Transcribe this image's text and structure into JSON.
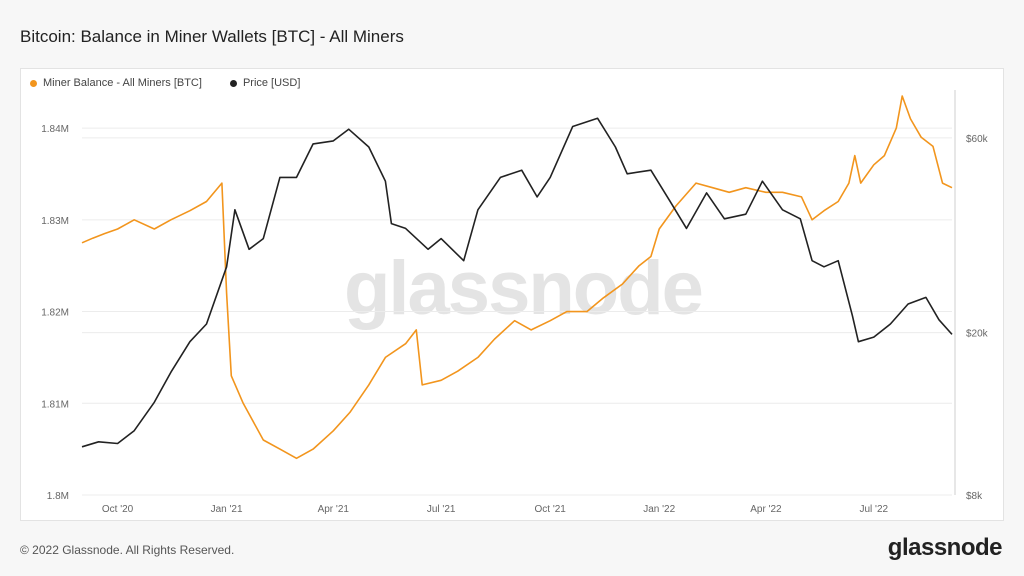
{
  "header": {
    "title": "Bitcoin: Balance in Miner Wallets [BTC] - All Miners"
  },
  "footer": {
    "copyright": "© 2022 Glassnode. All Rights Reserved.",
    "logo": "glassnode"
  },
  "watermark": "glassnode",
  "colors": {
    "balance": "#f2951d",
    "price": "#222222",
    "grid": "#ececec",
    "axis_text": "#666666"
  },
  "chart_data": {
    "type": "line",
    "title": "Bitcoin: Balance in Miner Wallets [BTC] - All Miners",
    "x_tick_labels": [
      "Oct '20",
      "Jan '21",
      "Apr '21",
      "Jul '21",
      "Oct '21",
      "Jan '22",
      "Apr '22",
      "Jul '22"
    ],
    "x_range": [
      "2020-09-01",
      "2022-09-05"
    ],
    "y_left": {
      "ticks": [
        1.8,
        1.81,
        1.82,
        1.83,
        1.84
      ],
      "tick_labels": [
        "1.8M",
        "1.81M",
        "1.82M",
        "1.83M",
        "1.84M"
      ],
      "range_millions": [
        1.8,
        1.8435
      ]
    },
    "y_right": {
      "scale": "log",
      "ticks": [
        8000,
        20000,
        60000
      ],
      "tick_labels": [
        "$8k",
        "$20k",
        "$60k"
      ],
      "range": [
        8000,
        76000
      ]
    },
    "legend_position": "top-left",
    "grid": true,
    "series": [
      {
        "name": "Miner Balance - All Miners [BTC]",
        "axis": "left",
        "unit": "millions BTC",
        "points": [
          [
            "2020-09-01",
            1.8275
          ],
          [
            "2020-09-10",
            1.828
          ],
          [
            "2020-09-20",
            1.8285
          ],
          [
            "2020-10-01",
            1.829
          ],
          [
            "2020-10-15",
            1.83
          ],
          [
            "2020-11-01",
            1.829
          ],
          [
            "2020-11-15",
            1.83
          ],
          [
            "2020-12-01",
            1.831
          ],
          [
            "2020-12-15",
            1.832
          ],
          [
            "2020-12-28",
            1.834
          ],
          [
            "2021-01-01",
            1.822
          ],
          [
            "2021-01-05",
            1.813
          ],
          [
            "2021-01-15",
            1.81
          ],
          [
            "2021-02-01",
            1.806
          ],
          [
            "2021-02-15",
            1.805
          ],
          [
            "2021-03-01",
            1.804
          ],
          [
            "2021-03-15",
            1.805
          ],
          [
            "2021-04-01",
            1.807
          ],
          [
            "2021-04-15",
            1.809
          ],
          [
            "2021-05-01",
            1.812
          ],
          [
            "2021-05-15",
            1.815
          ],
          [
            "2021-06-01",
            1.8165
          ],
          [
            "2021-06-10",
            1.818
          ],
          [
            "2021-06-15",
            1.812
          ],
          [
            "2021-07-01",
            1.8125
          ],
          [
            "2021-07-15",
            1.8135
          ],
          [
            "2021-08-01",
            1.815
          ],
          [
            "2021-08-15",
            1.817
          ],
          [
            "2021-09-01",
            1.819
          ],
          [
            "2021-09-15",
            1.818
          ],
          [
            "2021-10-01",
            1.819
          ],
          [
            "2021-10-15",
            1.82
          ],
          [
            "2021-11-01",
            1.82
          ],
          [
            "2021-11-15",
            1.8215
          ],
          [
            "2021-12-01",
            1.823
          ],
          [
            "2021-12-15",
            1.825
          ],
          [
            "2021-12-25",
            1.826
          ],
          [
            "2022-01-01",
            1.829
          ],
          [
            "2022-01-15",
            1.8315
          ],
          [
            "2022-02-01",
            1.834
          ],
          [
            "2022-02-15",
            1.8335
          ],
          [
            "2022-03-01",
            1.833
          ],
          [
            "2022-03-15",
            1.8335
          ],
          [
            "2022-04-01",
            1.833
          ],
          [
            "2022-04-15",
            1.833
          ],
          [
            "2022-05-01",
            1.8325
          ],
          [
            "2022-05-10",
            1.83
          ],
          [
            "2022-05-20",
            1.831
          ],
          [
            "2022-06-01",
            1.832
          ],
          [
            "2022-06-10",
            1.834
          ],
          [
            "2022-06-15",
            1.837
          ],
          [
            "2022-06-20",
            1.834
          ],
          [
            "2022-07-01",
            1.836
          ],
          [
            "2022-07-10",
            1.837
          ],
          [
            "2022-07-20",
            1.84
          ],
          [
            "2022-07-25",
            1.8435
          ],
          [
            "2022-08-01",
            1.841
          ],
          [
            "2022-08-10",
            1.839
          ],
          [
            "2022-08-20",
            1.838
          ],
          [
            "2022-08-28",
            1.834
          ],
          [
            "2022-09-05",
            1.8335
          ]
        ]
      },
      {
        "name": "Price [USD]",
        "axis": "right",
        "unit": "USD",
        "points": [
          [
            "2020-09-01",
            10500
          ],
          [
            "2020-09-15",
            10800
          ],
          [
            "2020-10-01",
            10700
          ],
          [
            "2020-10-15",
            11500
          ],
          [
            "2020-11-01",
            13500
          ],
          [
            "2020-11-15",
            16000
          ],
          [
            "2020-12-01",
            19000
          ],
          [
            "2020-12-15",
            21000
          ],
          [
            "2021-01-01",
            29000
          ],
          [
            "2021-01-08",
            40000
          ],
          [
            "2021-01-20",
            32000
          ],
          [
            "2021-02-01",
            34000
          ],
          [
            "2021-02-15",
            48000
          ],
          [
            "2021-03-01",
            48000
          ],
          [
            "2021-03-15",
            58000
          ],
          [
            "2021-04-01",
            59000
          ],
          [
            "2021-04-14",
            63000
          ],
          [
            "2021-05-01",
            57000
          ],
          [
            "2021-05-15",
            47000
          ],
          [
            "2021-05-20",
            37000
          ],
          [
            "2021-06-01",
            36000
          ],
          [
            "2021-06-20",
            32000
          ],
          [
            "2021-07-01",
            34000
          ],
          [
            "2021-07-20",
            30000
          ],
          [
            "2021-08-01",
            40000
          ],
          [
            "2021-08-20",
            48000
          ],
          [
            "2021-09-07",
            50000
          ],
          [
            "2021-09-20",
            43000
          ],
          [
            "2021-10-01",
            48000
          ],
          [
            "2021-10-20",
            64000
          ],
          [
            "2021-11-10",
            67000
          ],
          [
            "2021-11-25",
            57000
          ],
          [
            "2021-12-05",
            49000
          ],
          [
            "2021-12-25",
            50000
          ],
          [
            "2022-01-10",
            42000
          ],
          [
            "2022-01-24",
            36000
          ],
          [
            "2022-02-10",
            44000
          ],
          [
            "2022-02-25",
            38000
          ],
          [
            "2022-03-15",
            39000
          ],
          [
            "2022-03-29",
            47000
          ],
          [
            "2022-04-15",
            40000
          ],
          [
            "2022-04-30",
            38000
          ],
          [
            "2022-05-10",
            30000
          ],
          [
            "2022-05-20",
            29000
          ],
          [
            "2022-06-01",
            30000
          ],
          [
            "2022-06-13",
            22000
          ],
          [
            "2022-06-18",
            19000
          ],
          [
            "2022-07-01",
            19500
          ],
          [
            "2022-07-15",
            21000
          ],
          [
            "2022-07-30",
            23500
          ],
          [
            "2022-08-14",
            24400
          ],
          [
            "2022-08-25",
            21500
          ],
          [
            "2022-09-05",
            19800
          ]
        ]
      }
    ]
  }
}
